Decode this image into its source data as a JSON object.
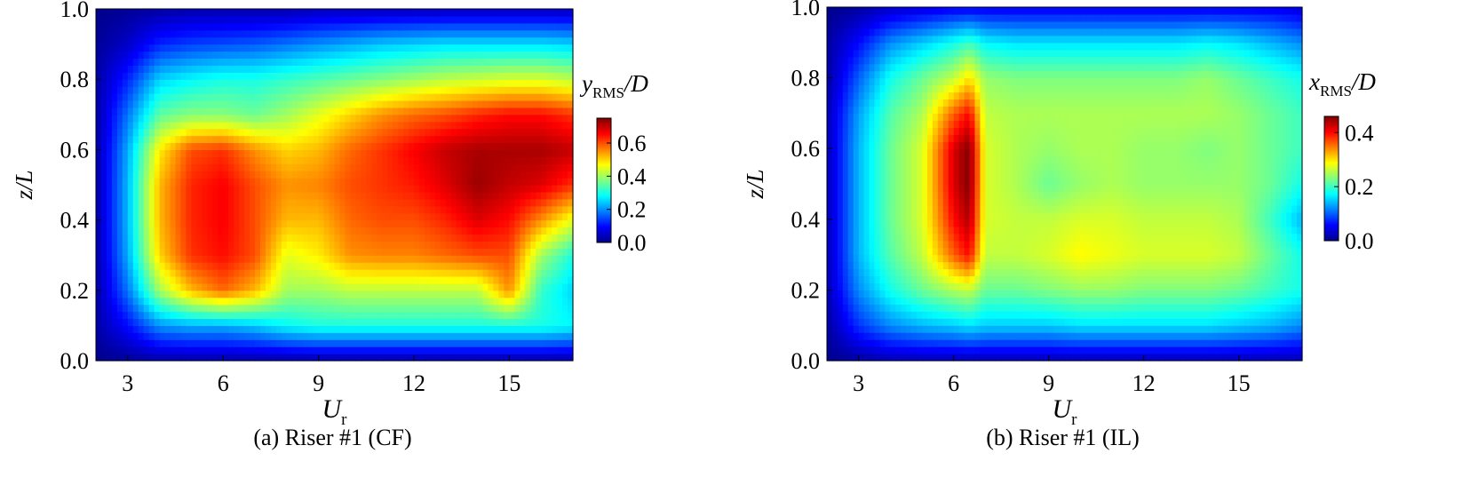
{
  "colormap": [
    "#00008b",
    "#0000ff",
    "#0080ff",
    "#00ffff",
    "#80ff80",
    "#ffff00",
    "#ff8000",
    "#ff0000",
    "#800000"
  ],
  "chart_data": [
    {
      "type": "heatmap",
      "caption": "(a) Riser #1 (CF)",
      "xlabel_main": "U",
      "xlabel_sub": "r",
      "ylabel": "z/L",
      "cbar_label_main": "y",
      "cbar_label_sub": "RMS",
      "cbar_label_tail": "/D",
      "xlim": [
        2,
        17
      ],
      "ylim": [
        0,
        1
      ],
      "xticks": [
        3,
        6,
        9,
        12,
        15
      ],
      "yticks": [
        "0.0",
        "0.2",
        "0.4",
        "0.6",
        "0.8",
        "1.0"
      ],
      "clim": [
        0,
        0.75
      ],
      "cbar_ticks": [
        "0.0",
        "0.2",
        "0.4",
        "0.6"
      ],
      "cbar_tick_values": [
        0,
        0.2,
        0.4,
        0.6
      ],
      "z_grid": {
        "x": [
          2,
          3,
          4,
          5,
          6,
          7,
          8,
          9,
          10,
          11,
          12,
          13,
          14,
          15,
          16,
          17
        ],
        "y": [
          0.0,
          0.1,
          0.2,
          0.3,
          0.4,
          0.5,
          0.6,
          0.7,
          0.8,
          0.9,
          1.0
        ],
        "z": [
          [
            0.0,
            0.01,
            0.02,
            0.02,
            0.02,
            0.02,
            0.02,
            0.02,
            0.02,
            0.02,
            0.02,
            0.02,
            0.02,
            0.02,
            0.02,
            0.02
          ],
          [
            0.02,
            0.1,
            0.2,
            0.22,
            0.22,
            0.24,
            0.28,
            0.3,
            0.3,
            0.3,
            0.3,
            0.3,
            0.3,
            0.3,
            0.3,
            0.28
          ],
          [
            0.02,
            0.18,
            0.4,
            0.52,
            0.58,
            0.52,
            0.4,
            0.4,
            0.42,
            0.42,
            0.42,
            0.42,
            0.42,
            0.55,
            0.32,
            0.25
          ],
          [
            0.02,
            0.22,
            0.5,
            0.62,
            0.65,
            0.6,
            0.45,
            0.48,
            0.55,
            0.56,
            0.56,
            0.58,
            0.6,
            0.6,
            0.4,
            0.3
          ],
          [
            0.02,
            0.23,
            0.52,
            0.63,
            0.66,
            0.6,
            0.52,
            0.52,
            0.58,
            0.6,
            0.6,
            0.63,
            0.68,
            0.65,
            0.55,
            0.45
          ],
          [
            0.02,
            0.23,
            0.52,
            0.63,
            0.66,
            0.6,
            0.55,
            0.56,
            0.6,
            0.62,
            0.64,
            0.68,
            0.73,
            0.7,
            0.68,
            0.62
          ],
          [
            0.02,
            0.22,
            0.48,
            0.6,
            0.62,
            0.55,
            0.5,
            0.52,
            0.58,
            0.62,
            0.66,
            0.7,
            0.72,
            0.72,
            0.72,
            0.7
          ],
          [
            0.02,
            0.18,
            0.35,
            0.38,
            0.38,
            0.36,
            0.4,
            0.45,
            0.5,
            0.55,
            0.58,
            0.6,
            0.63,
            0.65,
            0.65,
            0.62
          ],
          [
            0.02,
            0.12,
            0.25,
            0.28,
            0.3,
            0.3,
            0.32,
            0.34,
            0.36,
            0.38,
            0.4,
            0.42,
            0.43,
            0.44,
            0.44,
            0.42
          ],
          [
            0.01,
            0.05,
            0.12,
            0.14,
            0.15,
            0.16,
            0.18,
            0.2,
            0.22,
            0.24,
            0.25,
            0.26,
            0.26,
            0.26,
            0.26,
            0.25
          ],
          [
            0.0,
            0.01,
            0.02,
            0.03,
            0.03,
            0.03,
            0.03,
            0.04,
            0.04,
            0.04,
            0.04,
            0.04,
            0.04,
            0.04,
            0.04,
            0.04
          ]
        ]
      }
    },
    {
      "type": "heatmap",
      "caption": "(b) Riser #1 (IL)",
      "xlabel_main": "U",
      "xlabel_sub": "r",
      "ylabel": "z/L",
      "cbar_label_main": "x",
      "cbar_label_sub": "RMS",
      "cbar_label_tail": "/D",
      "xlim": [
        2,
        17
      ],
      "ylim": [
        0,
        1
      ],
      "xticks": [
        3,
        6,
        9,
        12,
        15
      ],
      "yticks": [
        "0.0",
        "0.2",
        "0.4",
        "0.6",
        "0.8",
        "1.0"
      ],
      "clim": [
        0,
        0.46
      ],
      "cbar_ticks": [
        "0.0",
        "0.2",
        "0.4"
      ],
      "cbar_tick_values": [
        0,
        0.2,
        0.4
      ],
      "z_grid": {
        "x": [
          2,
          3,
          4,
          5,
          6,
          6.5,
          7,
          8,
          9,
          10,
          11,
          12,
          13,
          14,
          15,
          16,
          17
        ],
        "y": [
          0.0,
          0.1,
          0.2,
          0.3,
          0.4,
          0.5,
          0.6,
          0.7,
          0.8,
          0.9,
          1.0
        ],
        "z": [
          [
            0.0,
            0.01,
            0.02,
            0.02,
            0.02,
            0.02,
            0.02,
            0.02,
            0.02,
            0.02,
            0.02,
            0.02,
            0.02,
            0.02,
            0.02,
            0.02,
            0.02
          ],
          [
            0.01,
            0.08,
            0.12,
            0.14,
            0.15,
            0.16,
            0.15,
            0.15,
            0.15,
            0.16,
            0.16,
            0.16,
            0.16,
            0.16,
            0.15,
            0.14,
            0.12
          ],
          [
            0.02,
            0.12,
            0.18,
            0.22,
            0.25,
            0.26,
            0.22,
            0.22,
            0.23,
            0.24,
            0.24,
            0.23,
            0.23,
            0.23,
            0.22,
            0.2,
            0.18
          ],
          [
            0.02,
            0.14,
            0.21,
            0.26,
            0.36,
            0.4,
            0.26,
            0.26,
            0.27,
            0.29,
            0.28,
            0.27,
            0.27,
            0.27,
            0.26,
            0.22,
            0.18
          ],
          [
            0.02,
            0.14,
            0.22,
            0.27,
            0.4,
            0.44,
            0.27,
            0.26,
            0.26,
            0.27,
            0.27,
            0.26,
            0.26,
            0.26,
            0.25,
            0.2,
            0.14
          ],
          [
            0.02,
            0.14,
            0.22,
            0.27,
            0.42,
            0.46,
            0.27,
            0.25,
            0.22,
            0.24,
            0.25,
            0.24,
            0.24,
            0.24,
            0.24,
            0.22,
            0.18
          ],
          [
            0.02,
            0.14,
            0.22,
            0.27,
            0.42,
            0.46,
            0.27,
            0.25,
            0.24,
            0.25,
            0.25,
            0.24,
            0.24,
            0.23,
            0.24,
            0.22,
            0.2
          ],
          [
            0.02,
            0.13,
            0.21,
            0.25,
            0.36,
            0.4,
            0.26,
            0.25,
            0.25,
            0.25,
            0.25,
            0.25,
            0.25,
            0.25,
            0.24,
            0.22,
            0.2
          ],
          [
            0.01,
            0.1,
            0.18,
            0.22,
            0.26,
            0.3,
            0.24,
            0.23,
            0.23,
            0.23,
            0.23,
            0.23,
            0.23,
            0.24,
            0.22,
            0.2,
            0.18
          ],
          [
            0.01,
            0.06,
            0.12,
            0.15,
            0.18,
            0.2,
            0.17,
            0.16,
            0.16,
            0.16,
            0.16,
            0.16,
            0.16,
            0.17,
            0.16,
            0.14,
            0.12
          ],
          [
            0.0,
            0.01,
            0.03,
            0.04,
            0.05,
            0.05,
            0.05,
            0.05,
            0.05,
            0.05,
            0.05,
            0.05,
            0.05,
            0.05,
            0.05,
            0.05,
            0.04
          ]
        ]
      }
    }
  ]
}
